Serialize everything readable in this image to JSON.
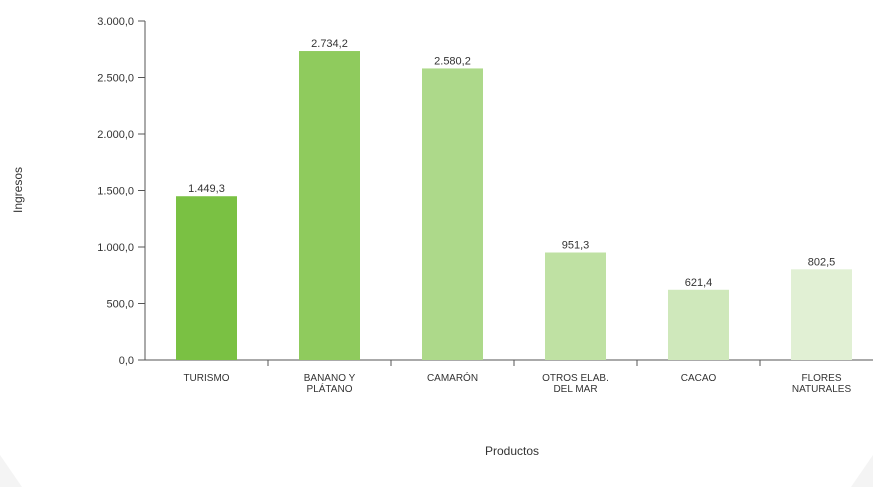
{
  "chart_data": {
    "type": "bar",
    "categories": [
      [
        "TURISMO"
      ],
      [
        "BANANO Y",
        "PLÁTANO"
      ],
      [
        "CAMARÓN"
      ],
      [
        "OTROS ELAB.",
        "DEL MAR"
      ],
      [
        "CACAO"
      ],
      [
        "FLORES",
        "NATURALES"
      ]
    ],
    "values": [
      1449.3,
      2734.2,
      2580.2,
      951.3,
      621.4,
      802.5
    ],
    "value_labels": [
      "1.449,3",
      "2.734,2",
      "2.580,2",
      "951,3",
      "621,4",
      "802,5"
    ],
    "y_ticks": [
      0,
      500,
      1000,
      1500,
      2000,
      2500,
      3000
    ],
    "y_tick_labels": [
      "0,0",
      "500,0",
      "1.000,0",
      "1.500,0",
      "2.000,0",
      "2.500,0",
      "3.000,0"
    ],
    "ylim": [
      0,
      3000
    ],
    "xlabel": "Productos",
    "ylabel": "Ingresos",
    "grid": false,
    "bar_colors": [
      "#7ac143",
      "#8fcb5d",
      "#add98a",
      "#bfe1a3",
      "#cfe8bb",
      "#e1f0d4"
    ]
  }
}
